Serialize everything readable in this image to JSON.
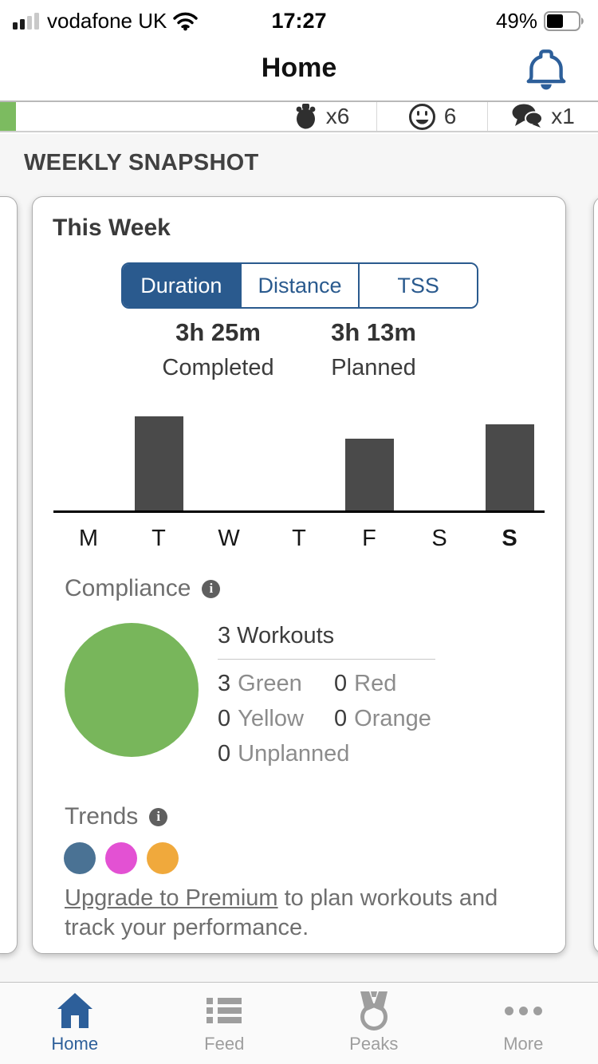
{
  "status_bar": {
    "carrier": "vodafone UK",
    "time": "17:27",
    "battery": "49%"
  },
  "header": {
    "title": "Home"
  },
  "summary_row": {
    "stats": [
      {
        "icon": "stopwatch-icon",
        "value": "x6"
      },
      {
        "icon": "smiley-icon",
        "value": "6"
      },
      {
        "icon": "comments-icon",
        "value": "x1"
      }
    ]
  },
  "section_title": "WEEKLY SNAPSHOT",
  "card": {
    "title": "This Week",
    "tabs": [
      {
        "label": "Duration",
        "selected": true
      },
      {
        "label": "Distance",
        "selected": false
      },
      {
        "label": "TSS",
        "selected": false
      }
    ],
    "stats": {
      "completed_value": "3h 25m",
      "completed_label": "Completed",
      "planned_value": "3h 13m",
      "planned_label": "Planned"
    },
    "chart_data": {
      "type": "bar",
      "categories": [
        "M",
        "T",
        "W",
        "T",
        "F",
        "S",
        "S"
      ],
      "values": [
        0,
        122,
        0,
        0,
        93,
        0,
        112
      ],
      "value_unit": "relative bar height, px (no value axis shown)",
      "ylim": [
        0,
        145
      ],
      "bar_color": "#4a4a4a",
      "today_index": 6,
      "grid": false
    },
    "compliance": {
      "title": "Compliance",
      "total": "3 Workouts",
      "circle_color": "#78b65b",
      "rows": [
        [
          {
            "n": "3",
            "label": "Green"
          },
          {
            "n": "0",
            "label": "Red"
          }
        ],
        [
          {
            "n": "0",
            "label": "Yellow"
          },
          {
            "n": "0",
            "label": "Orange"
          }
        ],
        [
          {
            "n": "0",
            "label": "Unplanned"
          }
        ]
      ]
    },
    "trends": {
      "title": "Trends",
      "dot_colors": [
        "#4a7294",
        "#e351d3",
        "#f0a93c"
      ]
    },
    "upgrade": {
      "link_text": "Upgrade to Premium",
      "rest_text": " to plan workouts and track your performance."
    }
  },
  "nav": {
    "items": [
      {
        "label": "Home",
        "active": true
      },
      {
        "label": "Feed",
        "active": false
      },
      {
        "label": "Peaks",
        "active": false
      },
      {
        "label": "More",
        "active": false
      }
    ]
  },
  "colors": {
    "accent_blue": "#2a5a8e",
    "nav_active_blue": "#2d5f9a",
    "bar_gray": "#4a4a4a",
    "strip_green": "#7cbb60"
  }
}
